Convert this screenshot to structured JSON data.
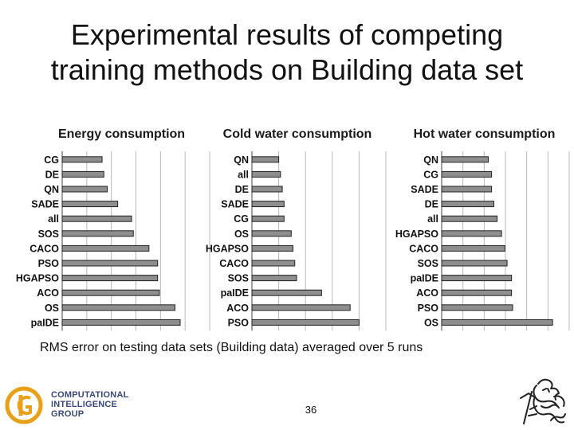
{
  "slide": {
    "title_line1": "Experimental results of competing",
    "title_line2": "training methods on Building data set",
    "caption": "RMS error on testing data sets (Building data) averaged over 5 runs",
    "page_number": "36",
    "logo_lines": [
      "COMPUTATIONAL",
      "INTELLIGENCE",
      "GROUP"
    ]
  },
  "colors": {
    "bar_fill": "#8e8e8e",
    "bar_stroke": "#222222",
    "logo_orange": "#e8a019",
    "logo_text": "#3a4a7a"
  },
  "chart_data": [
    {
      "type": "bar",
      "orientation": "horizontal",
      "title": "Energy consumption",
      "categories": [
        "CG",
        "DE",
        "QN",
        "SADE",
        "all",
        "SOS",
        "CACO",
        "PSO",
        "HGAPSO",
        "ACO",
        "OS",
        "paIDE"
      ],
      "values": [
        0.23,
        0.24,
        0.26,
        0.32,
        0.4,
        0.41,
        0.5,
        0.55,
        0.55,
        0.56,
        0.65,
        0.68
      ],
      "xlim": [
        0,
        0.85
      ],
      "x_gridlines": 6,
      "grid": true,
      "xlabel": "",
      "ylabel": ""
    },
    {
      "type": "bar",
      "orientation": "horizontal",
      "title": "Cold water consumption",
      "categories": [
        "QN",
        "all",
        "DE",
        "SADE",
        "CG",
        "OS",
        "HGAPSO",
        "CACO",
        "SOS",
        "paIDE",
        "ACO",
        "PSO"
      ],
      "values": [
        0.15,
        0.16,
        0.17,
        0.18,
        0.18,
        0.22,
        0.23,
        0.24,
        0.25,
        0.39,
        0.55,
        0.6
      ],
      "xlim": [
        0,
        0.75
      ],
      "x_gridlines": 5,
      "grid": true,
      "xlabel": "",
      "ylabel": ""
    },
    {
      "type": "bar",
      "orientation": "horizontal",
      "title": "Hot water consumption",
      "categories": [
        "QN",
        "CG",
        "SADE",
        "DE",
        "all",
        "HGAPSO",
        "CACO",
        "SOS",
        "paIDE",
        "ACO",
        "PSO",
        "OS"
      ],
      "values": [
        0.42,
        0.45,
        0.45,
        0.47,
        0.5,
        0.54,
        0.57,
        0.59,
        0.63,
        0.63,
        0.64,
        1.0
      ],
      "xlim": [
        0,
        1.15
      ],
      "x_gridlines": 6,
      "grid": true,
      "xlabel": "",
      "ylabel": ""
    }
  ]
}
